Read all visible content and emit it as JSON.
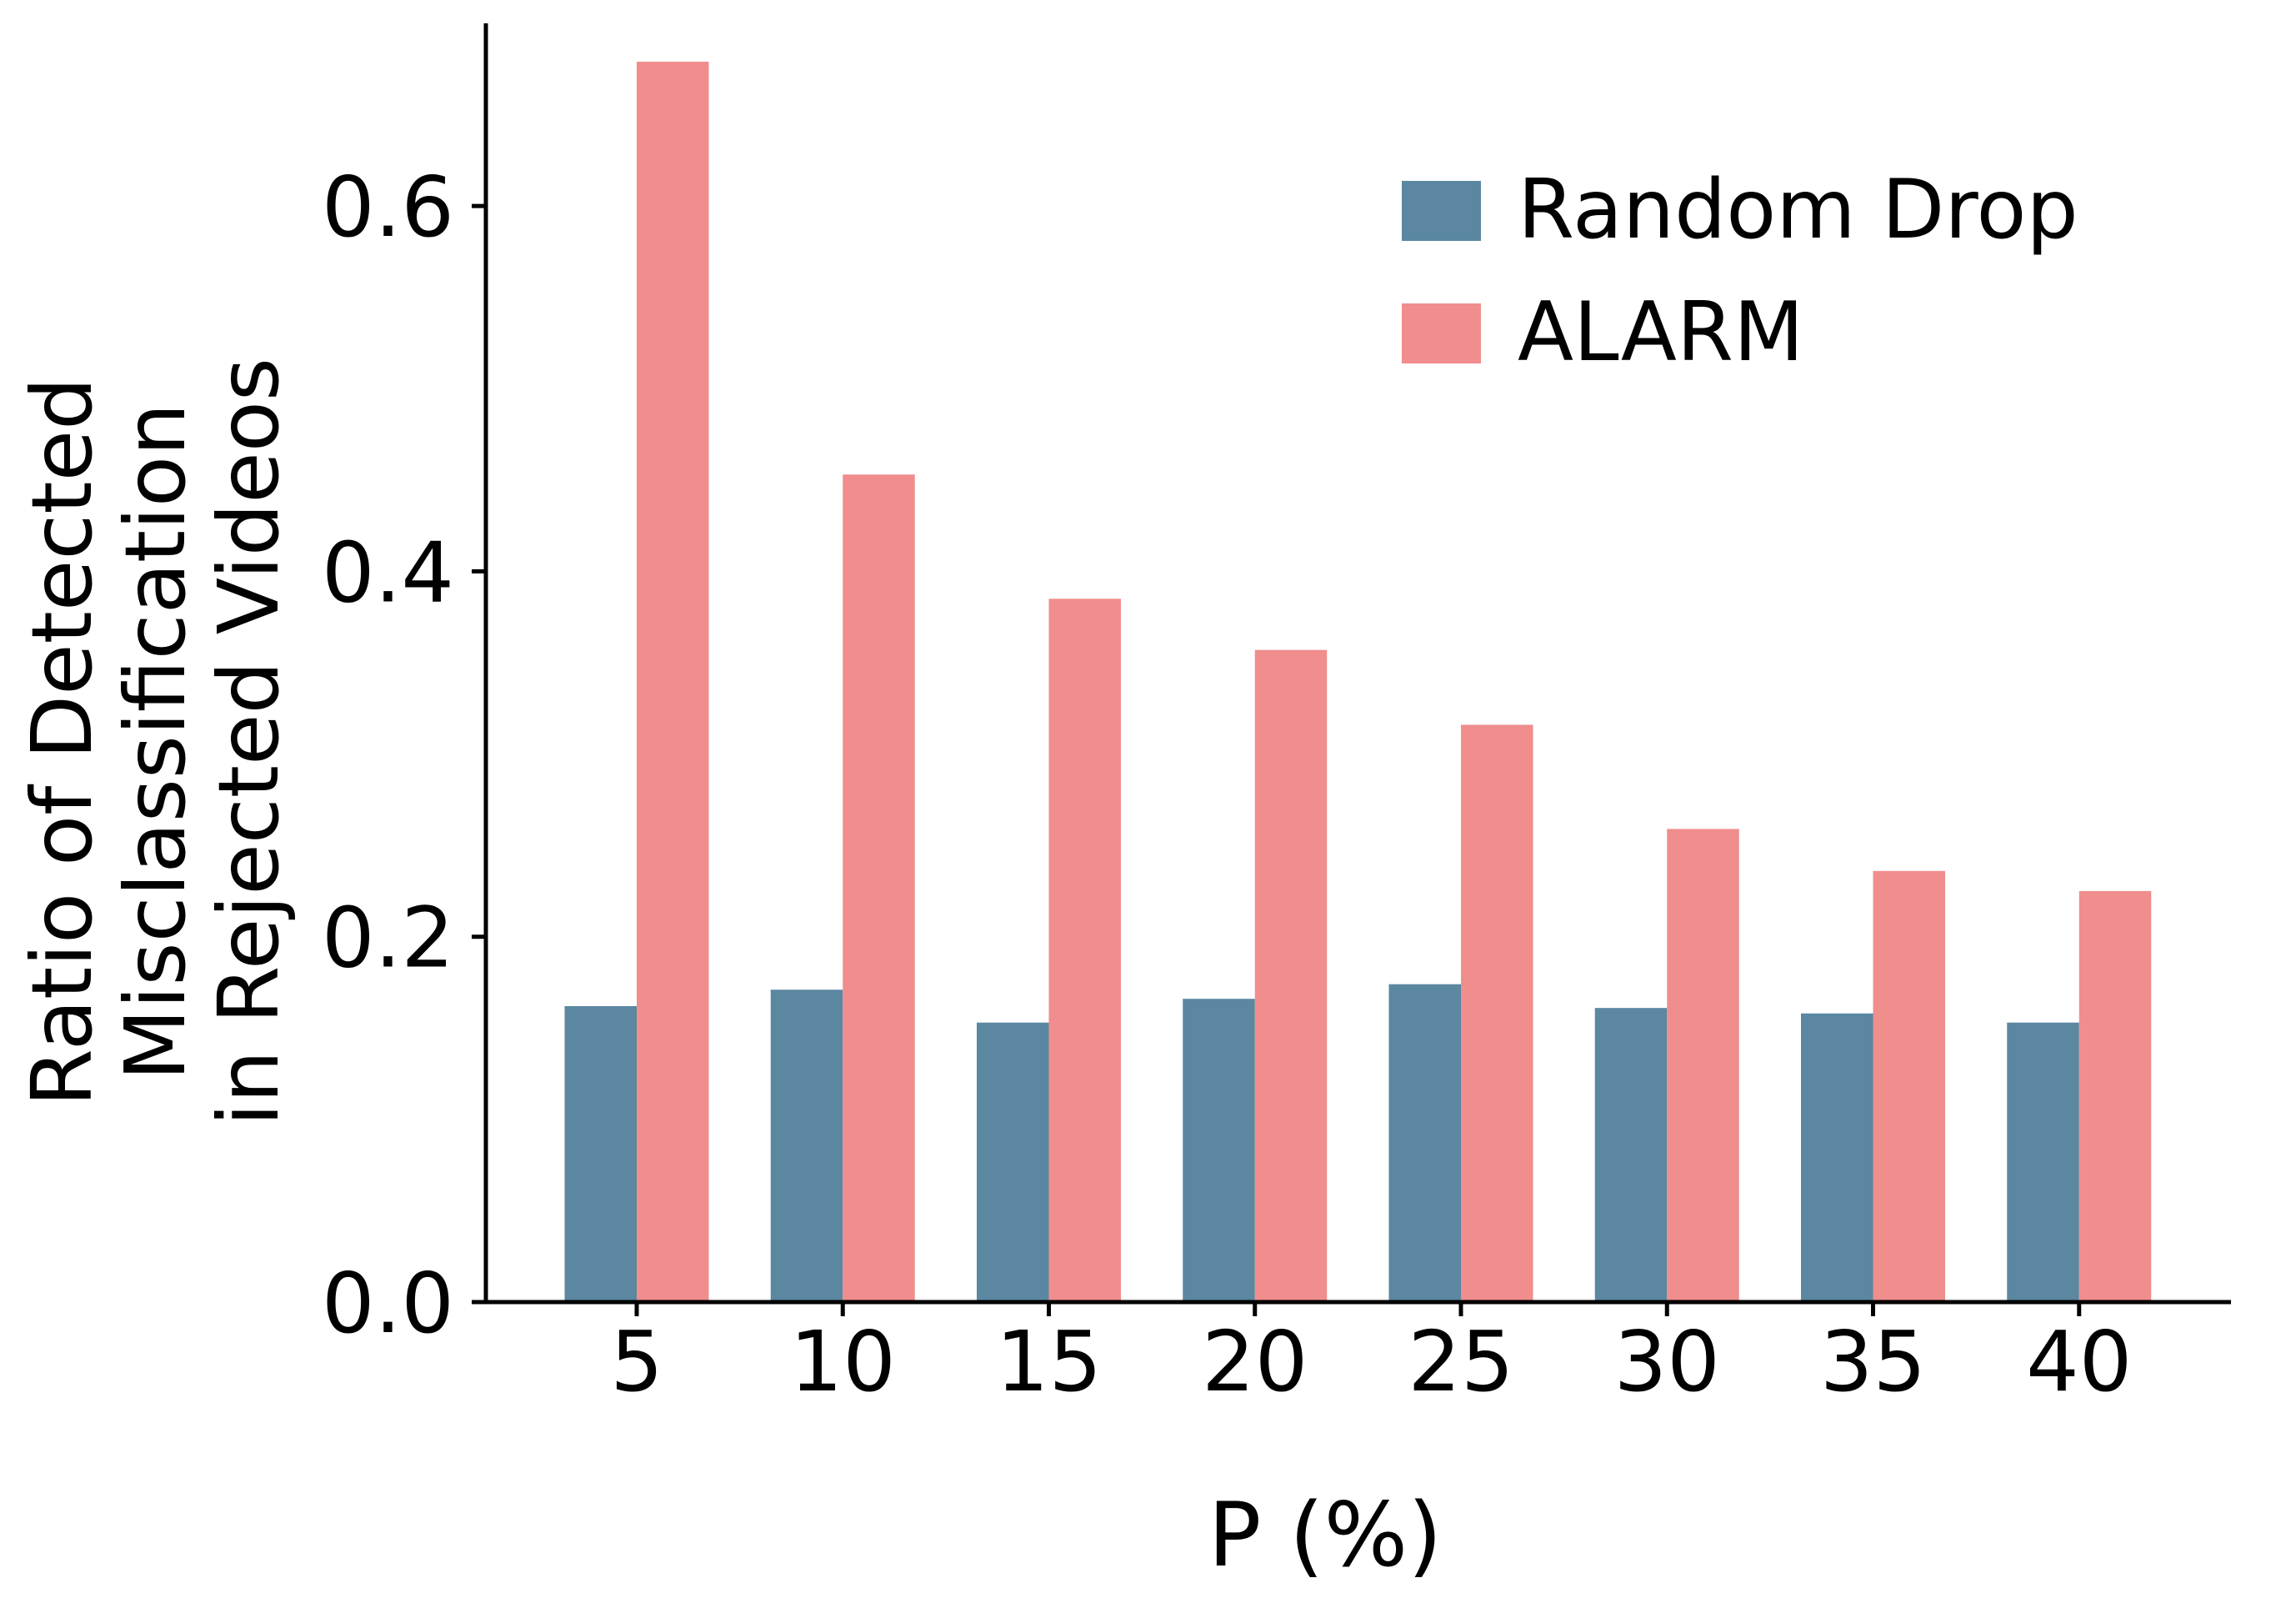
{
  "chart_data": {
    "type": "bar",
    "title": "",
    "xlabel": "P (%)",
    "ylabel": "Ratio of Detected\nMisclassification\nin Rejected Videos",
    "categories": [
      "5",
      "10",
      "15",
      "20",
      "25",
      "30",
      "35",
      "40"
    ],
    "series": [
      {
        "name": "Random Drop",
        "color": "#5b87a1",
        "values": [
          0.162,
          0.171,
          0.153,
          0.166,
          0.174,
          0.161,
          0.158,
          0.153
        ]
      },
      {
        "name": "ALARM",
        "color": "#f08d8d",
        "values": [
          0.679,
          0.453,
          0.385,
          0.357,
          0.316,
          0.259,
          0.236,
          0.225
        ]
      }
    ],
    "ylim": [
      0,
      0.7
    ],
    "yticks": [
      "0.0",
      "0.2",
      "0.4",
      "0.6"
    ],
    "ytick_values": [
      0.0,
      0.2,
      0.4,
      0.6
    ],
    "grid": false,
    "legend_position": "upper right",
    "axis_color": "#000000",
    "text_color": "#000000"
  }
}
